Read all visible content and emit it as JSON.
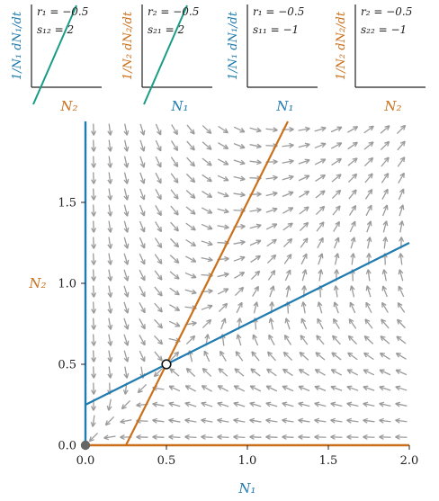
{
  "colors": {
    "species1": "#1f7bb0",
    "species2": "#cc6f1b",
    "mini_line": "#1a9b85",
    "arrow": "#9b9b9b",
    "axis": "#222222"
  },
  "insets": [
    {
      "ylabel": "1/N₁ dN₁/dt",
      "ylabel_color": "species1",
      "xlabel": "N₂",
      "xlabel_color": "species2",
      "r_text": "r₁ = −0.5",
      "s_text": "s₁₂ = 2",
      "shows_line": true
    },
    {
      "ylabel": "1/N₂ dN₂/dt",
      "ylabel_color": "species2",
      "xlabel": "N₁",
      "xlabel_color": "species1",
      "r_text": "r₂ = −0.5",
      "s_text": "s₂₁ = 2",
      "shows_line": true
    },
    {
      "ylabel": "1/N₁ dN₁/dt",
      "ylabel_color": "species1",
      "xlabel": "N₁",
      "xlabel_color": "species1",
      "r_text": "r₁ = −0.5",
      "s_text": "s₁₁ = −1",
      "shows_line": false
    },
    {
      "ylabel": "1/N₂ dN₂/dt",
      "ylabel_color": "species2",
      "xlabel": "N₂",
      "xlabel_color": "species2",
      "r_text": "r₂ = −0.5",
      "s_text": "s₂₂ = −1",
      "shows_line": false
    }
  ],
  "chart_data": {
    "type": "phase_portrait",
    "xlabel": "N₁",
    "ylabel": "N₂",
    "xlim": [
      0,
      2.0
    ],
    "ylim": [
      0,
      2.0
    ],
    "xticks": [
      0.0,
      0.5,
      1.0,
      1.5,
      2.0
    ],
    "xtick_labels": [
      "0.0",
      "0.5",
      "1.0",
      "1.5",
      "2.0"
    ],
    "yticks": [
      0.0,
      0.5,
      1.0,
      1.5
    ],
    "ytick_labels": [
      "0.0",
      "0.5",
      "1.0",
      "1.5"
    ],
    "model": {
      "r1": -0.5,
      "r2": -0.5,
      "s11": -1,
      "s12": 2,
      "s21": 2,
      "s22": -1
    },
    "nullclines": [
      {
        "species": "N1",
        "color": "species1",
        "kind": "line",
        "points": [
          [
            0,
            0.25
          ],
          [
            2.0,
            1.25
          ]
        ]
      },
      {
        "species": "N1",
        "color": "species1",
        "kind": "axis",
        "points": [
          [
            0,
            0
          ],
          [
            0,
            2.0
          ]
        ]
      },
      {
        "species": "N2",
        "color": "species2",
        "kind": "line",
        "points": [
          [
            0.25,
            0
          ],
          [
            1.25,
            2.0
          ]
        ]
      },
      {
        "species": "N2",
        "color": "species2",
        "kind": "axis",
        "points": [
          [
            0,
            0
          ],
          [
            2.0,
            0
          ]
        ]
      }
    ],
    "equilibria": [
      {
        "x": 0.5,
        "y": 0.5,
        "stability": "unstable"
      },
      {
        "x": 0.0,
        "y": 0.0,
        "stability": "stable"
      }
    ],
    "field": {
      "x_start": 0.05,
      "x_step": 0.1,
      "x_count": 20,
      "y_start": 0.05,
      "y_step": 0.1,
      "y_count": 20
    }
  }
}
